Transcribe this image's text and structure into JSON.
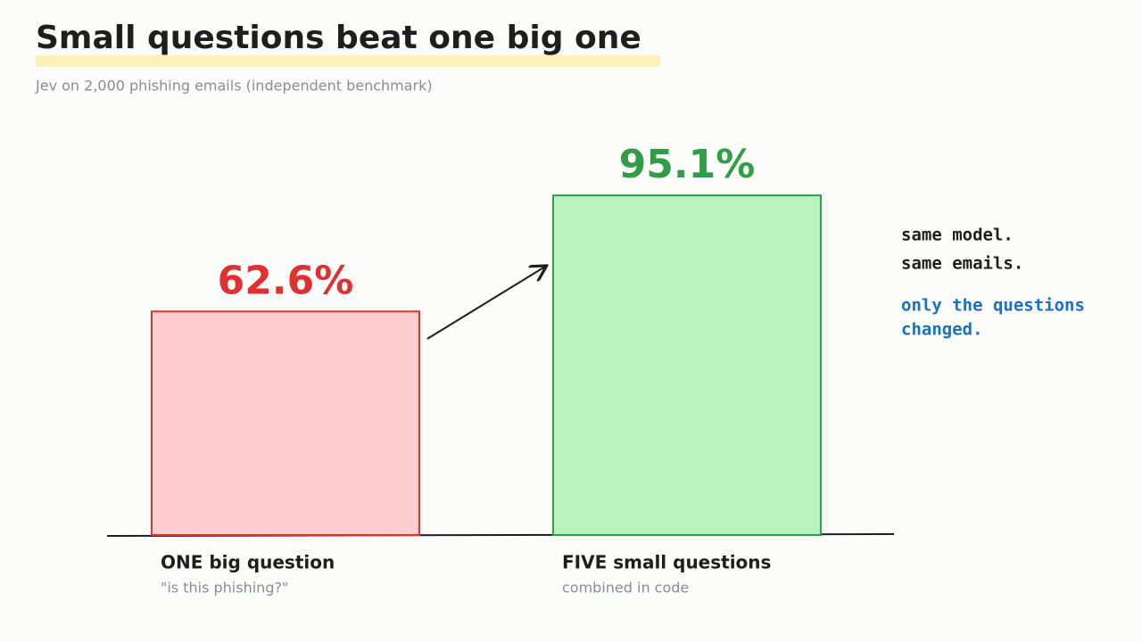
{
  "chart_data": {
    "type": "bar",
    "title": "Small questions beat one big one",
    "subtitle": "Jev on 2,000 phishing emails (independent benchmark)",
    "categories": [
      "ONE big question",
      "FIVE small questions"
    ],
    "category_notes": [
      "\"is this phishing?\"",
      "combined in code"
    ],
    "values": [
      62.6,
      95.1
    ],
    "value_labels": [
      "62.6%",
      "95.1%"
    ],
    "colors": [
      "#e03131",
      "#2f9e44"
    ],
    "fills": [
      "#ffcdd0",
      "#b9f2c0"
    ],
    "annotations": [
      {
        "text": "same model.",
        "color": "#1e1e1e"
      },
      {
        "text": "same emails.",
        "color": "#1e1e1e"
      },
      {
        "text": "only the questions",
        "color": "#1971c2"
      },
      {
        "text": "changed.",
        "color": "#1971c2"
      }
    ]
  }
}
